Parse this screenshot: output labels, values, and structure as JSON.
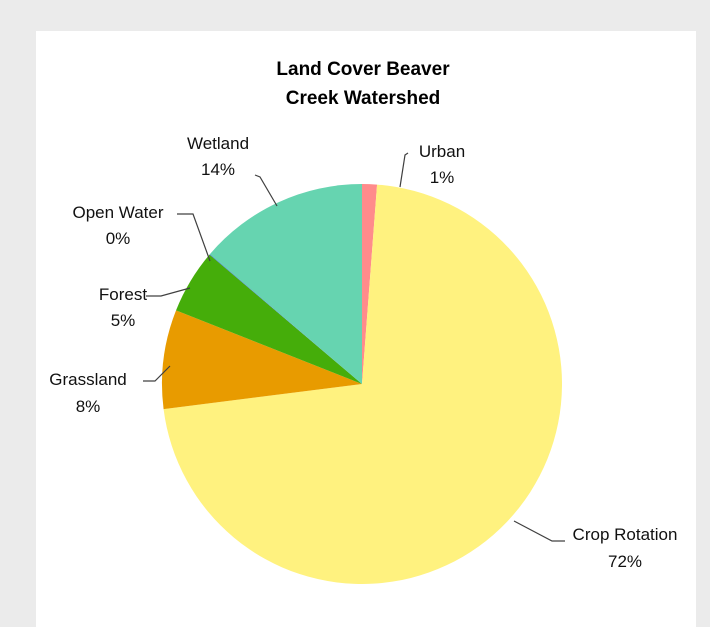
{
  "chart_data": {
    "type": "pie",
    "title": "Land Cover Beaver Creek Watershed",
    "title_lines": [
      "Land Cover Beaver",
      "Creek Watershed"
    ],
    "start_angle_deg": 90,
    "direction": "clockwise",
    "slices": [
      {
        "name": "Urban",
        "percent_label": "1%",
        "value": 1.2,
        "color": "#ff8b8b"
      },
      {
        "name": "Crop Rotation",
        "percent_label": "72%",
        "value": 71.8,
        "color": "#fff27f"
      },
      {
        "name": "Grassland",
        "percent_label": "8%",
        "value": 8.0,
        "color": "#e89b00"
      },
      {
        "name": "Forest",
        "percent_label": "5%",
        "value": 5.2,
        "color": "#45ad0a"
      },
      {
        "name": "Open Water",
        "percent_label": "0%",
        "value": 0.05,
        "color": "#3d7fd0"
      },
      {
        "name": "Wetland",
        "percent_label": "14%",
        "value": 13.75,
        "color": "#66d4b0"
      }
    ],
    "grid": false,
    "legend": "none"
  }
}
